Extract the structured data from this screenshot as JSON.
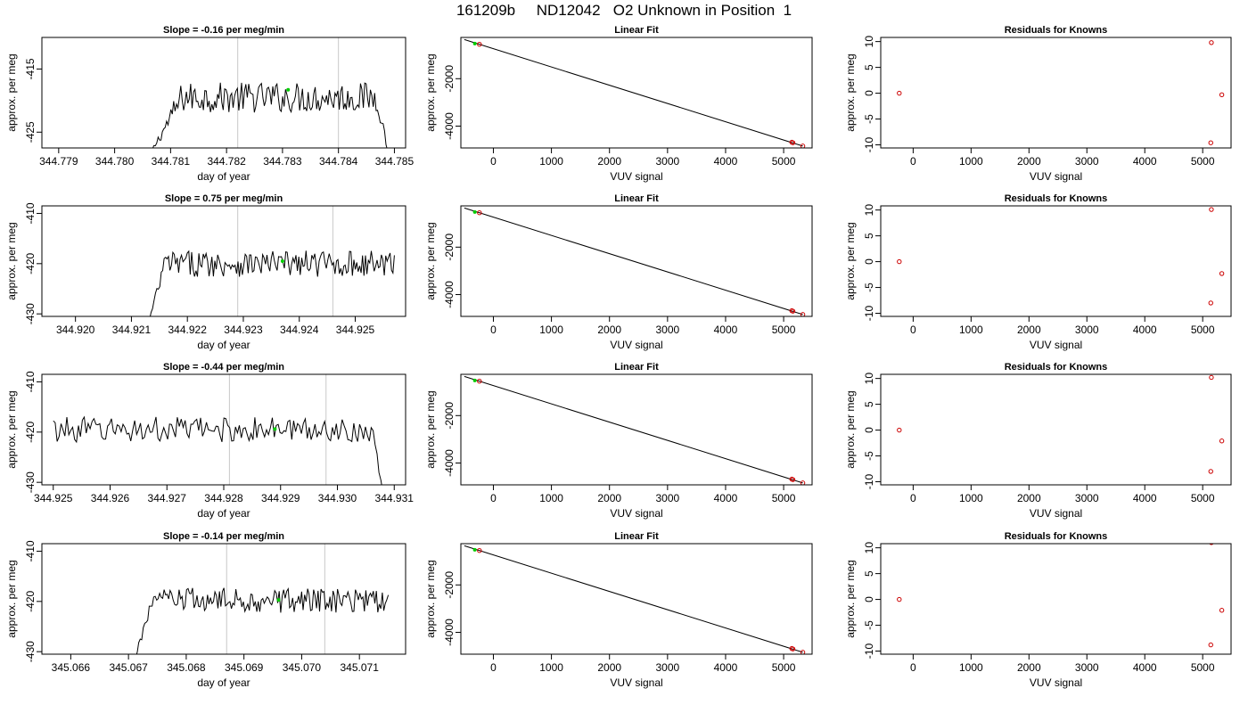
{
  "page": {
    "title": "161209b     ND12042   O2 Unknown in Position  1"
  },
  "chart_data": [
    {
      "type": "line",
      "title": "Slope =  -0.16  per meg/min",
      "xlabel": "day of year",
      "ylabel": "approx. per meg",
      "xlim": [
        344.7787,
        344.7852
      ],
      "ylim": [
        -427.5,
        -410.0
      ],
      "xticks": [
        344.779,
        344.78,
        344.781,
        344.782,
        344.783,
        344.784,
        344.785
      ],
      "xtick_labels": [
        "344.779",
        "344.780",
        "344.781",
        "344.782",
        "344.783",
        "344.784",
        "344.785"
      ],
      "yticks": [
        -415,
        -425
      ],
      "ytick_labels": [
        "-415",
        "-425"
      ],
      "vlines": [
        344.7822,
        344.784
      ],
      "series_x_range": [
        344.7806,
        344.7849
      ],
      "series_level": -419.5,
      "series_amplitude": 2.4,
      "rise": {
        "start": -429,
        "end_x": 344.7812
      },
      "fall": {
        "start_x": 344.7847,
        "end": -429
      },
      "highlight_point": {
        "x": 344.7831,
        "y": -418.3
      },
      "colors": {
        "line": "#000000",
        "vline": "#c8c8c8",
        "highlight": "#00cc00"
      }
    },
    {
      "type": "scatter",
      "title": "Linear Fit",
      "xlabel": "VUV signal",
      "ylabel": "approx. per meg",
      "xlim": [
        -560,
        5490
      ],
      "ylim": [
        -4920,
        -260
      ],
      "xticks": [
        0,
        1000,
        2000,
        3000,
        4000,
        5000
      ],
      "xtick_labels": [
        "0",
        "1000",
        "2000",
        "3000",
        "4000",
        "5000"
      ],
      "yticks": [
        -2000,
        -4000
      ],
      "ytick_labels": [
        "-2000",
        "-4000"
      ],
      "fit_line": [
        [
          -500,
          -350
        ],
        [
          5330,
          -4840
        ]
      ],
      "points": [
        {
          "x": -240,
          "y": -550
        },
        {
          "x": 5140,
          "y": -4680
        },
        {
          "x": 5160,
          "y": -4700
        },
        {
          "x": 5330,
          "y": -4840
        }
      ],
      "highlight_point": {
        "x": -320,
        "y": -520
      },
      "colors": {
        "point": "#cc0000",
        "line": "#000000",
        "highlight": "#00cc00"
      }
    },
    {
      "type": "scatter",
      "title": "Residuals for Knowns",
      "xlabel": "VUV signal",
      "ylabel": "approx. per meg",
      "xlim": [
        -560,
        5490
      ],
      "ylim": [
        -10.6,
        10.8
      ],
      "xticks": [
        0,
        1000,
        2000,
        3000,
        4000,
        5000
      ],
      "xtick_labels": [
        "0",
        "1000",
        "2000",
        "3000",
        "4000",
        "5000"
      ],
      "yticks": [
        -10,
        -5,
        0,
        5,
        10
      ],
      "ytick_labels": [
        "-10",
        "-5",
        "0",
        "5",
        "10"
      ],
      "points": [
        {
          "x": -240,
          "y": 0.0
        },
        {
          "x": 5150,
          "y": 9.8
        },
        {
          "x": 5330,
          "y": -0.3
        },
        {
          "x": 5140,
          "y": -9.6
        }
      ],
      "colors": {
        "point": "#cc0000"
      }
    },
    {
      "type": "line",
      "title": "Slope =  0.75  per meg/min",
      "xlabel": "day of year",
      "ylabel": "approx. per meg",
      "xlim": [
        344.9194,
        344.9259
      ],
      "ylim": [
        -430.5,
        -408.5
      ],
      "xticks": [
        344.92,
        344.921,
        344.922,
        344.923,
        344.924,
        344.925
      ],
      "xtick_labels": [
        "344.920",
        "344.921",
        "344.922",
        "344.923",
        "344.924",
        "344.925"
      ],
      "yticks": [
        -410,
        -420,
        -430
      ],
      "ytick_labels": [
        "-410",
        "-420",
        "-430"
      ],
      "vlines": [
        344.9229,
        344.9246
      ],
      "series_x_range": [
        344.9213,
        344.9257
      ],
      "series_level": -420.0,
      "series_amplitude": 2.6,
      "rise": {
        "start": -432,
        "end_x": 344.9216
      },
      "fall": null,
      "highlight_point": {
        "x": 344.9237,
        "y": -419.5
      },
      "colors": {
        "line": "#000000",
        "vline": "#c8c8c8",
        "highlight": "#00cc00"
      }
    },
    {
      "type": "scatter",
      "title": "Linear Fit",
      "xlabel": "VUV signal",
      "ylabel": "approx. per meg",
      "xlim": [
        -560,
        5490
      ],
      "ylim": [
        -4920,
        -260
      ],
      "xticks": [
        0,
        1000,
        2000,
        3000,
        4000,
        5000
      ],
      "xtick_labels": [
        "0",
        "1000",
        "2000",
        "3000",
        "4000",
        "5000"
      ],
      "yticks": [
        -2000,
        -4000
      ],
      "ytick_labels": [
        "-2000",
        "-4000"
      ],
      "fit_line": [
        [
          -500,
          -350
        ],
        [
          5330,
          -4840
        ]
      ],
      "points": [
        {
          "x": -240,
          "y": -550
        },
        {
          "x": 5140,
          "y": -4680
        },
        {
          "x": 5160,
          "y": -4700
        },
        {
          "x": 5330,
          "y": -4840
        }
      ],
      "highlight_point": {
        "x": -320,
        "y": -520
      },
      "colors": {
        "point": "#cc0000",
        "line": "#000000",
        "highlight": "#00cc00"
      }
    },
    {
      "type": "scatter",
      "title": "Residuals for Knowns",
      "xlabel": "VUV signal",
      "ylabel": "approx. per meg",
      "xlim": [
        -560,
        5490
      ],
      "ylim": [
        -10.6,
        10.8
      ],
      "xticks": [
        0,
        1000,
        2000,
        3000,
        4000,
        5000
      ],
      "xtick_labels": [
        "0",
        "1000",
        "2000",
        "3000",
        "4000",
        "5000"
      ],
      "yticks": [
        -10,
        -5,
        0,
        5,
        10
      ],
      "ytick_labels": [
        "-10",
        "-5",
        "0",
        "5",
        "10"
      ],
      "points": [
        {
          "x": -240,
          "y": 0.0
        },
        {
          "x": 5150,
          "y": 10.1
        },
        {
          "x": 5330,
          "y": -2.3
        },
        {
          "x": 5140,
          "y": -8.0
        }
      ],
      "colors": {
        "point": "#cc0000"
      }
    },
    {
      "type": "line",
      "title": "Slope =  -0.44  per meg/min",
      "xlabel": "day of year",
      "ylabel": "approx. per meg",
      "xlim": [
        344.9248,
        344.9312
      ],
      "ylim": [
        -430.5,
        -408.5
      ],
      "xticks": [
        344.925,
        344.926,
        344.927,
        344.928,
        344.929,
        344.93,
        344.931
      ],
      "xtick_labels": [
        "344.925",
        "344.926",
        "344.927",
        "344.928",
        "344.929",
        "344.930",
        "344.931"
      ],
      "yticks": [
        -410,
        -420,
        -430
      ],
      "ytick_labels": [
        "-410",
        "-420",
        "-430"
      ],
      "vlines": [
        344.9281,
        344.9298
      ],
      "series_x_range": [
        344.925,
        344.9308
      ],
      "series_level": -419.5,
      "series_amplitude": 2.5,
      "rise": null,
      "fall": {
        "start_x": 344.9306,
        "end": -432
      },
      "highlight_point": {
        "x": 344.9289,
        "y": -419.4
      },
      "colors": {
        "line": "#000000",
        "vline": "#c8c8c8",
        "highlight": "#00cc00"
      }
    },
    {
      "type": "scatter",
      "title": "Linear Fit",
      "xlabel": "VUV signal",
      "ylabel": "approx. per meg",
      "xlim": [
        -560,
        5490
      ],
      "ylim": [
        -4920,
        -260
      ],
      "xticks": [
        0,
        1000,
        2000,
        3000,
        4000,
        5000
      ],
      "xtick_labels": [
        "0",
        "1000",
        "2000",
        "3000",
        "4000",
        "5000"
      ],
      "yticks": [
        -2000,
        -4000
      ],
      "ytick_labels": [
        "-2000",
        "-4000"
      ],
      "fit_line": [
        [
          -500,
          -350
        ],
        [
          5330,
          -4840
        ]
      ],
      "points": [
        {
          "x": -240,
          "y": -550
        },
        {
          "x": 5140,
          "y": -4680
        },
        {
          "x": 5160,
          "y": -4700
        },
        {
          "x": 5330,
          "y": -4840
        }
      ],
      "highlight_point": {
        "x": -320,
        "y": -520
      },
      "colors": {
        "point": "#cc0000",
        "line": "#000000",
        "highlight": "#00cc00"
      }
    },
    {
      "type": "scatter",
      "title": "Residuals for Knowns",
      "xlabel": "VUV signal",
      "ylabel": "approx. per meg",
      "xlim": [
        -560,
        5490
      ],
      "ylim": [
        -10.6,
        10.8
      ],
      "xticks": [
        0,
        1000,
        2000,
        3000,
        4000,
        5000
      ],
      "xtick_labels": [
        "0",
        "1000",
        "2000",
        "3000",
        "4000",
        "5000"
      ],
      "yticks": [
        -10,
        -5,
        0,
        5,
        10
      ],
      "ytick_labels": [
        "-10",
        "-5",
        "0",
        "5",
        "10"
      ],
      "points": [
        {
          "x": -240,
          "y": 0.0
        },
        {
          "x": 5150,
          "y": 10.2
        },
        {
          "x": 5330,
          "y": -2.1
        },
        {
          "x": 5140,
          "y": -8.0
        }
      ],
      "colors": {
        "point": "#cc0000"
      }
    },
    {
      "type": "line",
      "title": "Slope =  -0.14  per meg/min",
      "xlabel": "day of year",
      "ylabel": "approx. per meg",
      "xlim": [
        345.0655,
        345.0718
      ],
      "ylim": [
        -430.5,
        -408.5
      ],
      "xticks": [
        345.066,
        345.067,
        345.068,
        345.069,
        345.07,
        345.071
      ],
      "xtick_labels": [
        "345.066",
        "345.067",
        "345.068",
        "345.069",
        "345.070",
        "345.071"
      ],
      "yticks": [
        -410,
        -420,
        -430
      ],
      "ytick_labels": [
        "-410",
        "-420",
        "-430"
      ],
      "vlines": [
        345.0687,
        345.0704
      ],
      "series_x_range": [
        345.0671,
        345.0715
      ],
      "series_level": -419.8,
      "series_amplitude": 2.5,
      "rise": {
        "start": -432,
        "end_x": 345.0674
      },
      "fall": null,
      "highlight_point": {
        "x": 345.0696,
        "y": -419.7
      },
      "colors": {
        "line": "#000000",
        "vline": "#c8c8c8",
        "highlight": "#00cc00"
      }
    },
    {
      "type": "scatter",
      "title": "Linear Fit",
      "xlabel": "VUV signal",
      "ylabel": "approx. per meg",
      "xlim": [
        -560,
        5490
      ],
      "ylim": [
        -4920,
        -260
      ],
      "xticks": [
        0,
        1000,
        2000,
        3000,
        4000,
        5000
      ],
      "xtick_labels": [
        "0",
        "1000",
        "2000",
        "3000",
        "4000",
        "5000"
      ],
      "yticks": [
        -2000,
        -4000
      ],
      "ytick_labels": [
        "-2000",
        "-4000"
      ],
      "fit_line": [
        [
          -500,
          -350
        ],
        [
          5330,
          -4840
        ]
      ],
      "points": [
        {
          "x": -240,
          "y": -550
        },
        {
          "x": 5140,
          "y": -4680
        },
        {
          "x": 5160,
          "y": -4700
        },
        {
          "x": 5330,
          "y": -4840
        }
      ],
      "highlight_point": {
        "x": -320,
        "y": -520
      },
      "colors": {
        "point": "#cc0000",
        "line": "#000000",
        "highlight": "#00cc00"
      }
    },
    {
      "type": "scatter",
      "title": "Residuals for Knowns",
      "xlabel": "VUV signal",
      "ylabel": "approx. per meg",
      "xlim": [
        -560,
        5490
      ],
      "ylim": [
        -10.6,
        10.8
      ],
      "xticks": [
        0,
        1000,
        2000,
        3000,
        4000,
        5000
      ],
      "xtick_labels": [
        "0",
        "1000",
        "2000",
        "3000",
        "4000",
        "5000"
      ],
      "yticks": [
        -10,
        -5,
        0,
        5,
        10
      ],
      "ytick_labels": [
        "-10",
        "-5",
        "0",
        "5",
        "10"
      ],
      "points": [
        {
          "x": -240,
          "y": 0.0
        },
        {
          "x": 5150,
          "y": 11.0
        },
        {
          "x": 5330,
          "y": -2.1
        },
        {
          "x": 5140,
          "y": -8.8
        }
      ],
      "colors": {
        "point": "#cc0000"
      }
    }
  ]
}
